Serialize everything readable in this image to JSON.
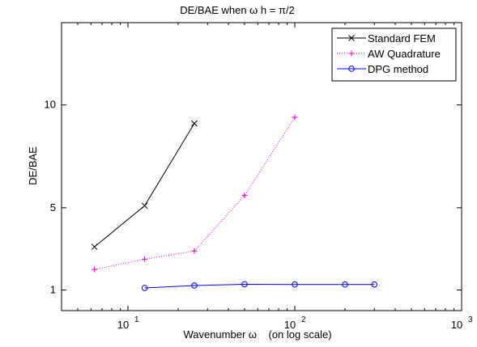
{
  "chart_data": {
    "type": "line",
    "title": "DE/BAE when ω h = π/2",
    "xlabel": "Wavenumber ω    (on log scale)",
    "ylabel": "DE/BAE",
    "x_scale": "log",
    "xlim": [
      4,
      1000
    ],
    "ylim": [
      0,
      14
    ],
    "x_ticks": [
      10,
      100,
      1000
    ],
    "x_tick_labels": [
      {
        "base": "10",
        "exp": "1"
      },
      {
        "base": "10",
        "exp": "2"
      },
      {
        "base": "10",
        "exp": "3"
      }
    ],
    "y_ticks": [
      1,
      5,
      10
    ],
    "y_tick_labels": [
      "1",
      "5",
      "10"
    ],
    "grid": false,
    "legend_position": "top-right",
    "series": [
      {
        "name": "Standard FEM",
        "color": "#000000",
        "line_style": "solid",
        "marker": "x",
        "x": [
          6.3,
          12.6,
          25
        ],
        "y": [
          3.1,
          5.1,
          9.1
        ]
      },
      {
        "name": "AW Quadrature",
        "color": "#e000e0",
        "line_style": "dotted",
        "marker": "plus",
        "x": [
          6.3,
          12.6,
          25,
          50,
          100
        ],
        "y": [
          2.0,
          2.5,
          2.9,
          5.6,
          9.4
        ]
      },
      {
        "name": "DPG method",
        "color": "#0000ff",
        "line_style": "solid",
        "marker": "circle",
        "x": [
          12.6,
          25,
          50,
          100,
          200,
          300
        ],
        "y": [
          1.1,
          1.22,
          1.28,
          1.27,
          1.27,
          1.27
        ]
      }
    ]
  }
}
